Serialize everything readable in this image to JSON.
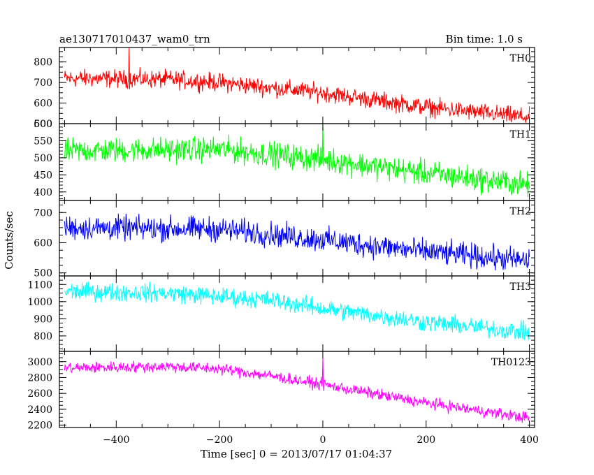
{
  "chart_data": {
    "type": "line",
    "title_left": "ae130717010437_wam0_trn",
    "title_right": "Bin time: 1.0 s",
    "xlabel": "Time [sec] 0 = 2013/07/17 01:04:37",
    "ylabel": "Counts/sec",
    "xlim": [
      -510,
      410
    ],
    "x_ticks": [
      -400,
      -200,
      0,
      200,
      400
    ],
    "x_tick_labels": [
      "−400",
      "−200",
      "0",
      "200",
      "400"
    ],
    "x_range": [
      -500,
      400
    ],
    "bin": 1.0,
    "panels": [
      {
        "name": "TH0",
        "color": "#ff0000",
        "ylim": [
          500,
          870
        ],
        "y_ticks": [
          500,
          600,
          700,
          800
        ],
        "y_tick_labels": [
          "500",
          "600",
          "700",
          "800"
        ],
        "trend": [
          [
            -500,
            720
          ],
          [
            -300,
            715
          ],
          [
            -200,
            700
          ],
          [
            0,
            650
          ],
          [
            200,
            580
          ],
          [
            400,
            530
          ]
        ],
        "noise_amp": 45,
        "spikes": [
          [
            -375,
            870
          ]
        ]
      },
      {
        "name": "TH1",
        "color": "#00ff00",
        "ylim": [
          375,
          600
        ],
        "y_ticks": [
          400,
          450,
          500,
          550,
          600
        ],
        "y_tick_labels": [
          "400",
          "450",
          "500",
          "550",
          "600"
        ],
        "trend": [
          [
            -500,
            520
          ],
          [
            -200,
            525
          ],
          [
            0,
            495
          ],
          [
            200,
            455
          ],
          [
            400,
            420
          ]
        ],
        "noise_amp": 38,
        "spikes": [
          [
            0,
            600
          ]
        ]
      },
      {
        "name": "TH2",
        "color": "#0000ff",
        "ylim": [
          490,
          740
        ],
        "y_ticks": [
          500,
          600,
          700
        ],
        "y_tick_labels": [
          "500",
          "600",
          "700"
        ],
        "trend": [
          [
            -500,
            650
          ],
          [
            -200,
            645
          ],
          [
            0,
            610
          ],
          [
            200,
            570
          ],
          [
            400,
            540
          ]
        ],
        "noise_amp": 42,
        "spikes": []
      },
      {
        "name": "TH3",
        "color": "#00ffff",
        "ylim": [
          710,
          1150
        ],
        "y_ticks": [
          800,
          900,
          1000,
          1100
        ],
        "y_tick_labels": [
          "800",
          "900",
          "1000",
          "1100"
        ],
        "trend": [
          [
            -500,
            1060
          ],
          [
            -300,
            1050
          ],
          [
            -100,
            1010
          ],
          [
            0,
            960
          ],
          [
            200,
            880
          ],
          [
            400,
            820
          ]
        ],
        "noise_amp": 55,
        "spikes": []
      },
      {
        "name": "TH0123",
        "color": "#ff00ff",
        "ylim": [
          2170,
          3130
        ],
        "y_ticks": [
          2200,
          2400,
          2600,
          2800,
          3000
        ],
        "y_tick_labels": [
          "2200",
          "2400",
          "2600",
          "2800",
          "3000"
        ],
        "trend": [
          [
            -500,
            2920
          ],
          [
            -300,
            2940
          ],
          [
            -200,
            2910
          ],
          [
            -100,
            2820
          ],
          [
            0,
            2710
          ],
          [
            200,
            2480
          ],
          [
            400,
            2290
          ]
        ],
        "noise_amp": 75,
        "spikes": [
          [
            0,
            3060
          ]
        ]
      }
    ]
  }
}
